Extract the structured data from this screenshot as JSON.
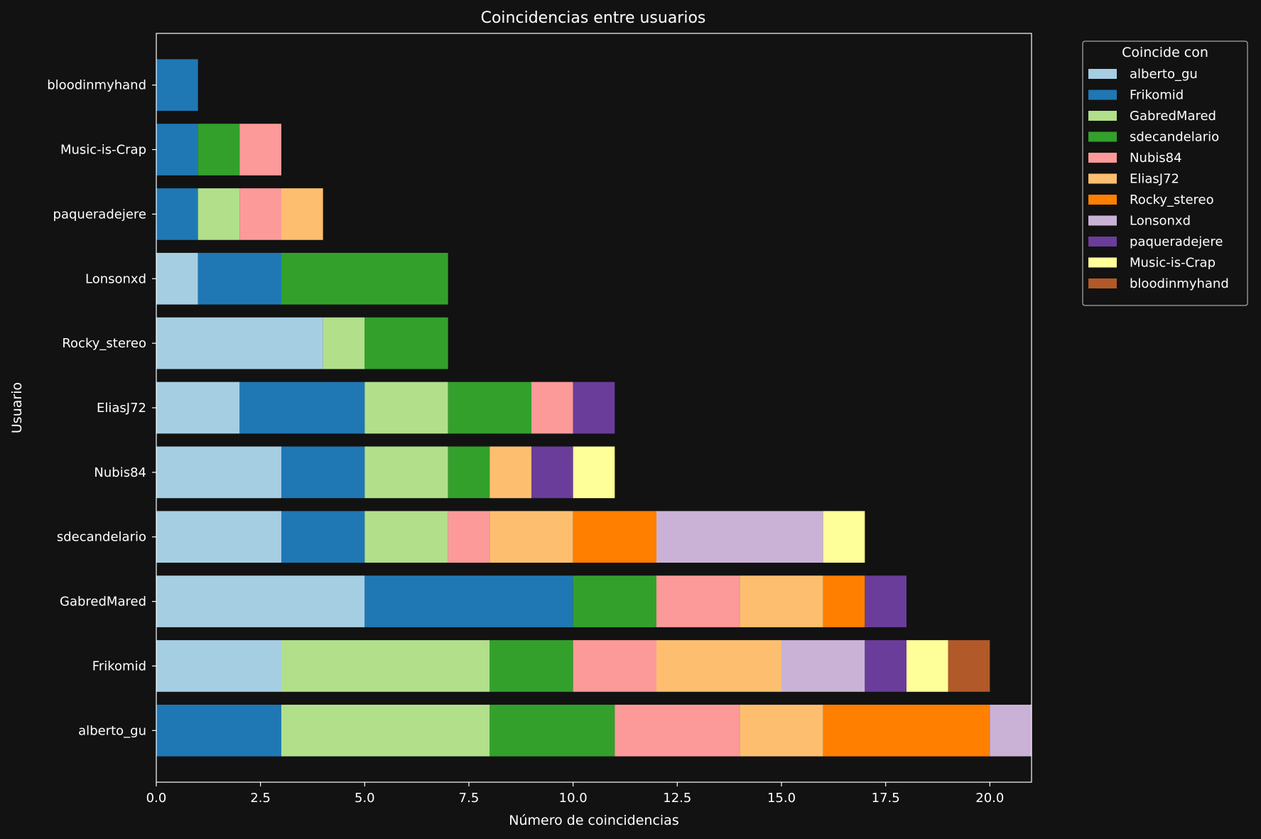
{
  "chart_data": {
    "type": "bar",
    "orientation": "horizontal",
    "stacked": true,
    "title": "Coincidencias entre usuarios",
    "xlabel": "Número de coincidencias",
    "ylabel": "Usuario",
    "xlim": [
      0,
      21
    ],
    "xticks": [
      "0.0",
      "2.5",
      "5.0",
      "7.5",
      "10.0",
      "12.5",
      "15.0",
      "17.5",
      "20.0"
    ],
    "grid": false,
    "legend_title": "Coincide con",
    "legend_position": "outside top-right",
    "categories": [
      "alberto_gu",
      "Frikomid",
      "GabredMared",
      "sdecandelario",
      "Nubis84",
      "EliasJ72",
      "Rocky_stereo",
      "Lonsonxd",
      "paqueradejere",
      "Music-is-Crap",
      "bloodinmyhand"
    ],
    "series": [
      {
        "name": "alberto_gu",
        "color": "#a6cee3",
        "values": [
          0,
          3,
          5,
          3,
          3,
          2,
          4,
          1,
          0,
          0,
          0
        ]
      },
      {
        "name": "Frikomid",
        "color": "#1f78b4",
        "values": [
          3,
          0,
          5,
          2,
          2,
          3,
          0,
          2,
          1,
          1,
          1
        ]
      },
      {
        "name": "GabredMared",
        "color": "#b2df8a",
        "values": [
          5,
          5,
          0,
          2,
          2,
          2,
          1,
          0,
          1,
          0,
          0
        ]
      },
      {
        "name": "sdecandelario",
        "color": "#33a02c",
        "values": [
          3,
          2,
          2,
          0,
          1,
          2,
          2,
          4,
          0,
          1,
          0
        ]
      },
      {
        "name": "Nubis84",
        "color": "#fb9a99",
        "values": [
          3,
          2,
          2,
          1,
          0,
          1,
          0,
          0,
          1,
          1,
          0
        ]
      },
      {
        "name": "EliasJ72",
        "color": "#fdbf6f",
        "values": [
          2,
          3,
          2,
          2,
          1,
          0,
          0,
          0,
          1,
          0,
          0
        ]
      },
      {
        "name": "Rocky_stereo",
        "color": "#ff7f00",
        "values": [
          4,
          0,
          1,
          2,
          0,
          0,
          0,
          0,
          0,
          0,
          0
        ]
      },
      {
        "name": "Lonsonxd",
        "color": "#cab2d6",
        "values": [
          1,
          2,
          0,
          4,
          0,
          0,
          0,
          0,
          0,
          0,
          0
        ]
      },
      {
        "name": "paqueradejere",
        "color": "#6a3d9a",
        "values": [
          0,
          1,
          1,
          0,
          1,
          1,
          0,
          0,
          0,
          0,
          0
        ]
      },
      {
        "name": "Music-is-Crap",
        "color": "#ffff99",
        "values": [
          0,
          1,
          0,
          1,
          1,
          0,
          0,
          0,
          0,
          0,
          0
        ]
      },
      {
        "name": "bloodinmyhand",
        "color": "#b15928",
        "values": [
          0,
          1,
          0,
          0,
          0,
          0,
          0,
          0,
          0,
          0,
          0
        ]
      }
    ]
  }
}
